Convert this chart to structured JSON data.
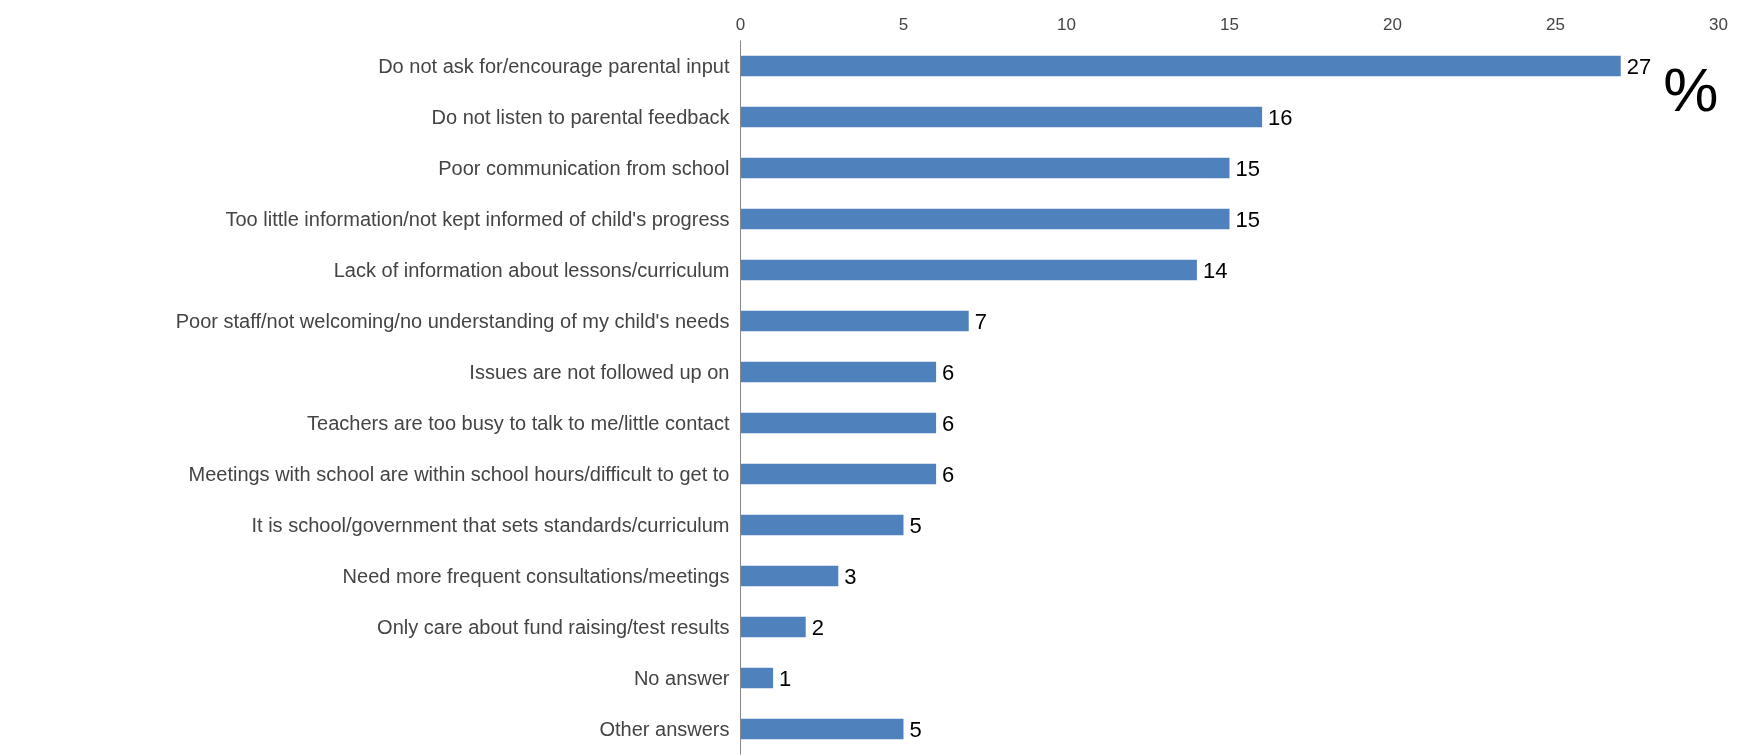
{
  "chart_data": {
    "type": "bar",
    "orientation": "horizontal",
    "xlabel": "%",
    "categories": [
      "Do not ask for/encourage parental input",
      "Do not listen to parental feedback",
      "Poor communication from school",
      "Too little information/not kept informed of child's progress",
      "Lack of information about lessons/curriculum",
      "Poor staff/not welcoming/no understanding of my child's needs",
      "Issues are not followed up on",
      "Teachers are too busy to talk to me/little contact",
      "Meetings with school are within school hours/difficult to get to",
      "It is school/government that sets standards/curriculum",
      "Need more frequent consultations/meetings",
      "Only care about fund raising/test results",
      "No answer",
      "Other answers"
    ],
    "values": [
      27,
      16,
      15,
      15,
      14,
      7,
      6,
      6,
      6,
      5,
      3,
      2,
      1,
      5
    ],
    "color": "#4f81bd",
    "xlim": [
      0,
      30
    ],
    "xticks": [
      0,
      5,
      10,
      15,
      20,
      25,
      30
    ],
    "data_labels": true,
    "grid": false
  }
}
